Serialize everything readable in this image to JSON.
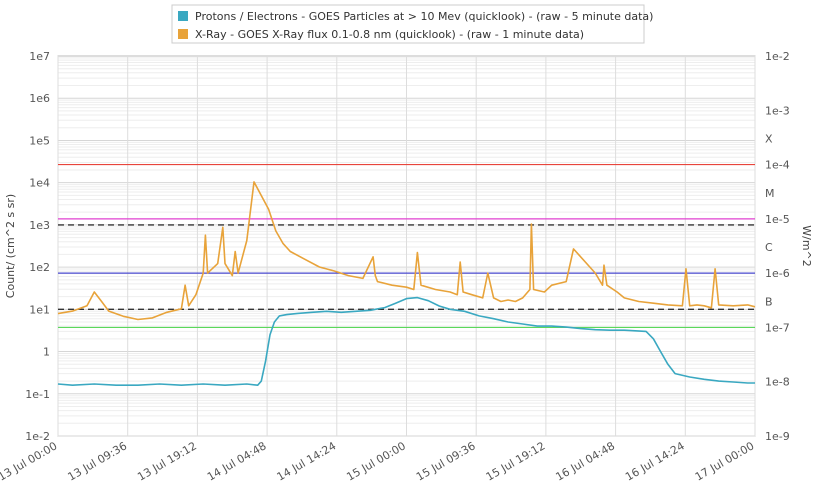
{
  "chart_data": {
    "type": "line",
    "legend": {
      "placement": "top-center",
      "entries": [
        {
          "label": "Protons / Electrons - GOES Particles at > 10 Mev (quicklook) -   (raw - 5 minute data)",
          "color": "#3aa8c1"
        },
        {
          "label": "X-Ray - GOES X-Ray flux 0.1-0.8 nm (quicklook) -   (raw - 1 minute data)",
          "color": "#e8a33a"
        }
      ]
    },
    "ylabel_left": "Count/ (cm^2 s sr)",
    "ylabel_right": "W/m^2",
    "ylim_left": [
      0.01,
      10000000
    ],
    "ylim_right": [
      1e-09,
      0.01
    ],
    "yscale": "log",
    "xlim_hours": [
      0,
      96
    ],
    "left_ticks": [
      "1e-2",
      "1e-1",
      "1",
      "1e1",
      "1e2",
      "1e3",
      "1e4",
      "1e5",
      "1e6",
      "1e7"
    ],
    "right_ticks": [
      "1e-9",
      "1e-8",
      "1e-7",
      "1e-6",
      "1e-5",
      "1e-4",
      "1e-3",
      "1e-2"
    ],
    "flare_classes": [
      {
        "label": "X",
        "value": 0.0003
      },
      {
        "label": "M",
        "value": 3e-05
      },
      {
        "label": "C",
        "value": 3e-06
      },
      {
        "label": "B",
        "value": 3e-07
      }
    ],
    "x_ticks": [
      "13 Jul 00:00",
      "13 Jul 09:36",
      "13 Jul 19:12",
      "14 Jul 04:48",
      "14 Jul 14:24",
      "15 Jul 00:00",
      "15 Jul 09:36",
      "15 Jul 19:12",
      "16 Jul 04:48",
      "16 Jul 14:24",
      "17 Jul 00:00"
    ],
    "threshold_lines": [
      {
        "value_right": 0.0001,
        "color": "#e8453c"
      },
      {
        "value_right": 1e-05,
        "color": "#e040d0"
      },
      {
        "value_right": 1e-06,
        "color": "#4b4bd0"
      },
      {
        "value_right": 1e-07,
        "color": "#5bd85b"
      },
      {
        "value_left": 1000,
        "color": "#333333",
        "dashed": true
      },
      {
        "value_left": 10,
        "color": "#333333",
        "dashed": true
      }
    ],
    "series": [
      {
        "name": "Protons / Electrons - GOES Particles at > 10 Mev (quicklook) -   (raw - 5 minute data)",
        "axis": "left",
        "color": "#3aa8c1",
        "x": [
          0,
          2,
          5,
          8,
          11,
          14,
          17,
          20,
          23,
          26,
          27.5,
          28,
          28.6,
          29.2,
          29.8,
          30.5,
          31.5,
          33,
          35,
          37,
          39,
          41,
          43,
          45,
          46.5,
          48,
          49.5,
          51,
          52.5,
          54,
          56,
          58,
          60,
          62,
          64,
          66,
          68,
          70,
          72,
          74,
          76,
          78,
          79.5,
          81,
          82,
          83,
          84,
          85,
          87,
          89,
          91,
          93,
          95,
          96
        ],
        "y": [
          0.17,
          0.16,
          0.17,
          0.16,
          0.16,
          0.17,
          0.16,
          0.17,
          0.16,
          0.17,
          0.16,
          0.2,
          0.6,
          2.5,
          5,
          7,
          7.5,
          8,
          8.5,
          9,
          8.5,
          9,
          9.5,
          11,
          14,
          18,
          19,
          16,
          12,
          10,
          9,
          7,
          6,
          5,
          4.5,
          4,
          4,
          3.8,
          3.5,
          3.3,
          3.2,
          3.2,
          3.1,
          3,
          2,
          1,
          0.5,
          0.3,
          0.25,
          0.22,
          0.2,
          0.19,
          0.18,
          0.18
        ]
      },
      {
        "name": "X-Ray - GOES X-Ray flux 0.1-0.8 nm (quicklook) -   (raw - 1 minute data)",
        "axis": "right",
        "color": "#e8a33a",
        "x": [
          0,
          2,
          4,
          5,
          6,
          7,
          9,
          11,
          13,
          15,
          17,
          17.5,
          18,
          19,
          20,
          20.3,
          20.6,
          22,
          22.7,
          23,
          24,
          24.4,
          24.8,
          26,
          27,
          29,
          30,
          31,
          32,
          34,
          36,
          38,
          40,
          42,
          43.4,
          43.7,
          44,
          46,
          48,
          49,
          49.5,
          50,
          52,
          54,
          55,
          55.4,
          55.8,
          57,
          58.5,
          59.2,
          60,
          61,
          62,
          63,
          64,
          65,
          65.2,
          65.5,
          67,
          68,
          70,
          71,
          74,
          75,
          75.2,
          75.6,
          77,
          78,
          80,
          82,
          84,
          86,
          86.5,
          87,
          88,
          89,
          90,
          90.5,
          91,
          93,
          95,
          96
        ],
        "y": [
          1.8e-07,
          2e-07,
          2.5e-07,
          4.5e-07,
          3e-07,
          2e-07,
          1.6e-07,
          1.4e-07,
          1.5e-07,
          1.9e-07,
          2.2e-07,
          6e-07,
          2.5e-07,
          4e-07,
          1e-06,
          5e-06,
          1e-06,
          1.5e-06,
          7e-06,
          1.5e-06,
          9e-07,
          2.5e-06,
          1e-06,
          4e-06,
          4.8e-05,
          1.5e-05,
          6e-06,
          3.5e-06,
          2.5e-06,
          1.8e-06,
          1.3e-06,
          1.1e-06,
          9e-07,
          8e-07,
          2e-06,
          9e-07,
          7e-07,
          6e-07,
          5.5e-07,
          5e-07,
          2.4e-06,
          6e-07,
          5e-07,
          4.5e-07,
          4e-07,
          1.6e-06,
          4.5e-07,
          4e-07,
          3.5e-07,
          1e-06,
          3.5e-07,
          3e-07,
          3.2e-07,
          3e-07,
          3.5e-07,
          5e-07,
          8e-06,
          5e-07,
          4.5e-07,
          6e-07,
          7e-07,
          2.8e-06,
          1e-06,
          6e-07,
          1.4e-06,
          6e-07,
          4.5e-07,
          3.5e-07,
          3e-07,
          2.8e-07,
          2.6e-07,
          2.5e-07,
          1.2e-06,
          2.5e-07,
          2.6e-07,
          2.5e-07,
          2.3e-07,
          1.2e-06,
          2.6e-07,
          2.5e-07,
          2.6e-07,
          2.4e-07
        ]
      }
    ]
  }
}
